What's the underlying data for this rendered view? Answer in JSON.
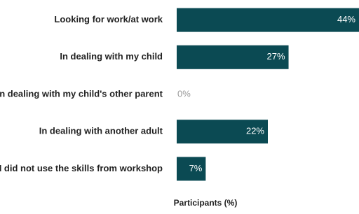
{
  "chart_data": {
    "type": "bar",
    "orientation": "horizontal",
    "x_label": "Participants (%)",
    "categories": [
      "Looking for work/at work",
      "In dealing with my child",
      "In dealing with my child's other parent",
      "In dealing with another adult",
      "I did not use the skills from workshop"
    ],
    "values": [
      44,
      27,
      0,
      22,
      7
    ],
    "value_labels": [
      "44%",
      "27%",
      "0%",
      "22%",
      "7%"
    ],
    "color": "#0b4a53"
  }
}
